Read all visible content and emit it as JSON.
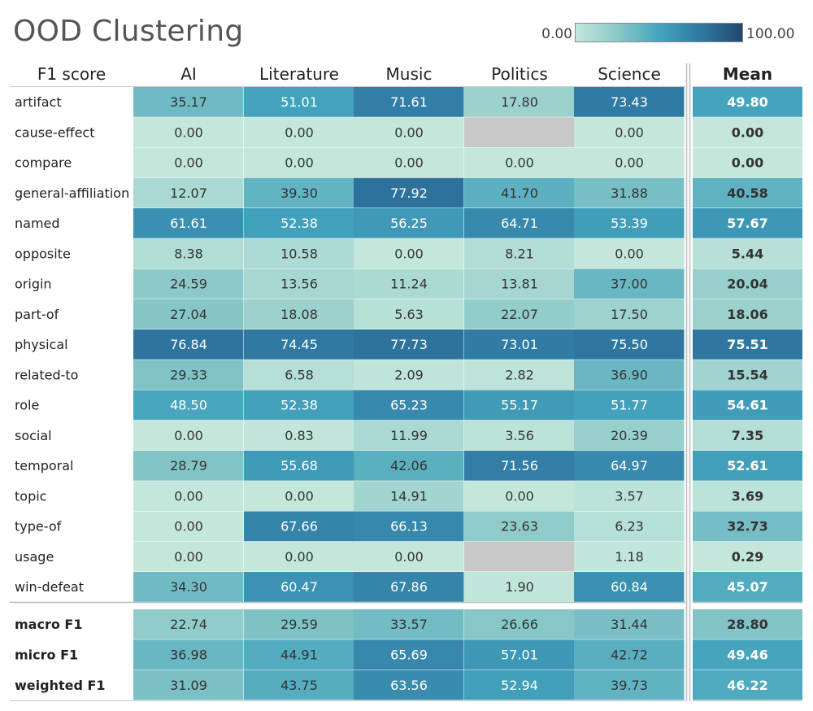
{
  "chart_data": {
    "type": "heatmap",
    "title": "OOD Clustering",
    "corner_label": "F1 score",
    "columns": [
      "AI",
      "Literature",
      "Music",
      "Politics",
      "Science"
    ],
    "mean_label": "Mean",
    "color_scale": {
      "min": 0,
      "max": 100,
      "min_label": "0.00",
      "max_label": "100.00",
      "colors": [
        "#c4e7dc",
        "#8cc9c8",
        "#44a4bd",
        "#2f78a2",
        "#22486f"
      ],
      "missing_color": "#c8c8c8"
    },
    "rows": [
      {
        "label": "artifact",
        "values": [
          35.17,
          51.01,
          71.61,
          17.8,
          73.43
        ],
        "mean": 49.8
      },
      {
        "label": "cause-effect",
        "values": [
          0.0,
          0.0,
          0.0,
          null,
          0.0
        ],
        "mean": 0.0
      },
      {
        "label": "compare",
        "values": [
          0.0,
          0.0,
          0.0,
          0.0,
          0.0
        ],
        "mean": 0.0
      },
      {
        "label": "general-affiliation",
        "values": [
          12.07,
          39.3,
          77.92,
          41.7,
          31.88
        ],
        "mean": 40.58
      },
      {
        "label": "named",
        "values": [
          61.61,
          52.38,
          56.25,
          64.71,
          53.39
        ],
        "mean": 57.67
      },
      {
        "label": "opposite",
        "values": [
          8.38,
          10.58,
          0.0,
          8.21,
          0.0
        ],
        "mean": 5.44
      },
      {
        "label": "origin",
        "values": [
          24.59,
          13.56,
          11.24,
          13.81,
          37.0
        ],
        "mean": 20.04
      },
      {
        "label": "part-of",
        "values": [
          27.04,
          18.08,
          5.63,
          22.07,
          17.5
        ],
        "mean": 18.06
      },
      {
        "label": "physical",
        "values": [
          76.84,
          74.45,
          77.73,
          73.01,
          75.5
        ],
        "mean": 75.51
      },
      {
        "label": "related-to",
        "values": [
          29.33,
          6.58,
          2.09,
          2.82,
          36.9
        ],
        "mean": 15.54
      },
      {
        "label": "role",
        "values": [
          48.5,
          52.38,
          65.23,
          55.17,
          51.77
        ],
        "mean": 54.61
      },
      {
        "label": "social",
        "values": [
          0.0,
          0.83,
          11.99,
          3.56,
          20.39
        ],
        "mean": 7.35
      },
      {
        "label": "temporal",
        "values": [
          28.79,
          55.68,
          42.06,
          71.56,
          64.97
        ],
        "mean": 52.61
      },
      {
        "label": "topic",
        "values": [
          0.0,
          0.0,
          14.91,
          0.0,
          3.57
        ],
        "mean": 3.69
      },
      {
        "label": "type-of",
        "values": [
          0.0,
          67.66,
          66.13,
          23.63,
          6.23
        ],
        "mean": 32.73
      },
      {
        "label": "usage",
        "values": [
          0.0,
          0.0,
          0.0,
          null,
          1.18
        ],
        "mean": 0.29
      },
      {
        "label": "win-defeat",
        "values": [
          34.3,
          60.47,
          67.86,
          1.9,
          60.84
        ],
        "mean": 45.07
      }
    ],
    "summary_rows": [
      {
        "label": "macro F1",
        "values": [
          22.74,
          29.59,
          33.57,
          26.66,
          31.44
        ],
        "mean": 28.8
      },
      {
        "label": "micro F1",
        "values": [
          36.98,
          44.91,
          65.69,
          57.01,
          42.72
        ],
        "mean": 49.46
      },
      {
        "label": "weighted F1",
        "values": [
          31.09,
          43.75,
          63.56,
          52.94,
          39.73
        ],
        "mean": 46.22
      }
    ]
  }
}
